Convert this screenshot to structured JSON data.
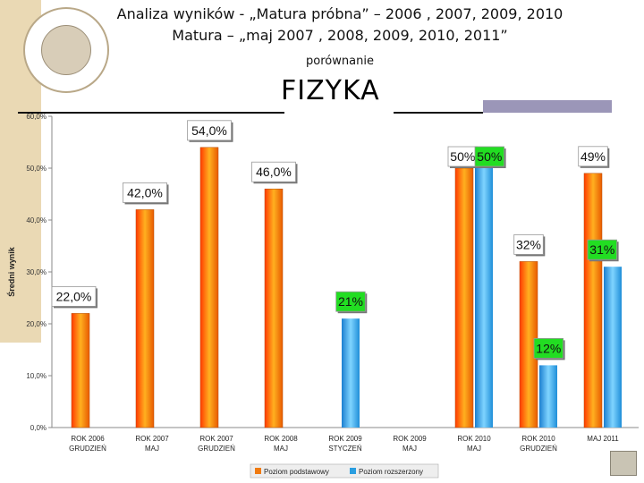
{
  "header": {
    "title_line1": "Analiza wyników  - „Matura próbna” – 2006 , 2007, 2009, 2010",
    "title_line2": "Matura – „maj 2007 , 2008, 2009, 2010, 2011”",
    "subtitle": "porównanie",
    "subject": "FIZYKA"
  },
  "chart_data": {
    "type": "bar",
    "ylabel": "Średni wynik",
    "ylim": [
      0,
      60
    ],
    "yticks": [
      "0,0%",
      "10,0%",
      "20,0%",
      "30,0%",
      "40,0%",
      "50,0%",
      "60,0%"
    ],
    "categories": [
      [
        "ROK 2006",
        "GRUDZIEŃ"
      ],
      [
        "ROK 2007",
        "MAJ"
      ],
      [
        "ROK 2007",
        "GRUDZIEŃ"
      ],
      [
        "ROK 2008",
        "MAJ"
      ],
      [
        "ROK 2009",
        "STYCZEŃ"
      ],
      [
        "ROK 2009",
        "MAJ"
      ],
      [
        "ROK 2010",
        "MAJ"
      ],
      [
        "ROK 2010",
        "GRUDZIEŃ"
      ],
      [
        "MAJ 2011",
        ""
      ]
    ],
    "series": [
      {
        "name": "Poziom podstawowy",
        "color": "#f07a10",
        "values": [
          22,
          42,
          54,
          46,
          null,
          null,
          50,
          32,
          49
        ],
        "labels": [
          "22,0%",
          "42,0%",
          "54,0%",
          "46,0%",
          "",
          "",
          "50%",
          "32%",
          "49%"
        ]
      },
      {
        "name": "Poziom rozszerzony",
        "color": "#2a9ee0",
        "values": [
          null,
          null,
          null,
          null,
          21,
          null,
          50,
          12,
          31
        ],
        "labels": [
          "",
          "",
          "",
          "",
          "21%",
          "",
          "50%",
          "12%",
          "31%"
        ]
      }
    ]
  }
}
